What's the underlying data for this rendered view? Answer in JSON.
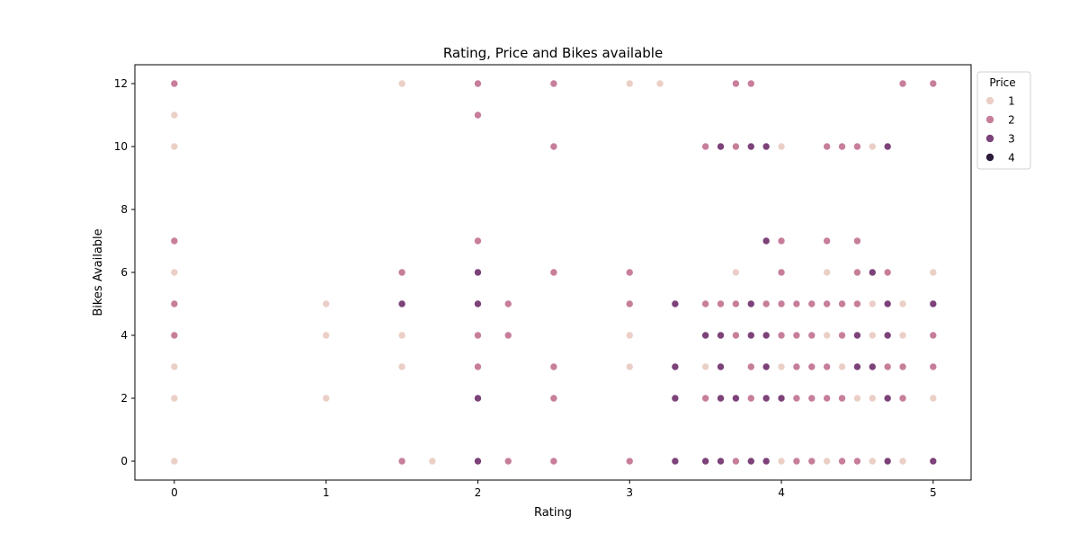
{
  "chart_data": {
    "type": "scatter",
    "title": "Rating, Price and Bikes available",
    "xlabel": "Rating",
    "ylabel": "Bikes Available",
    "xlim": [
      -0.26,
      5.25
    ],
    "ylim": [
      -0.6,
      12.6
    ],
    "xticks": [
      0,
      1,
      2,
      3,
      4,
      5
    ],
    "yticks": [
      0,
      2,
      4,
      6,
      8,
      10,
      12
    ],
    "grid": false,
    "legend": {
      "title": "Price",
      "placement": "outside-top-right",
      "entries": [
        {
          "label": "1",
          "color": "#ebcfc6"
        },
        {
          "label": "2",
          "color": "#c77e9a"
        },
        {
          "label": "3",
          "color": "#7c4279"
        },
        {
          "label": "4",
          "color": "#2d1b3b"
        }
      ]
    },
    "series": [
      {
        "name": "1",
        "color": "#ebcfc6",
        "points": [
          [
            0,
            11
          ],
          [
            0,
            10
          ],
          [
            0,
            6
          ],
          [
            0,
            3
          ],
          [
            0,
            2
          ],
          [
            0,
            0
          ],
          [
            1,
            5
          ],
          [
            1,
            4
          ],
          [
            1,
            2
          ],
          [
            1.5,
            12
          ],
          [
            1.5,
            4
          ],
          [
            1.5,
            3
          ],
          [
            1.7,
            0
          ],
          [
            3,
            12
          ],
          [
            3.2,
            12
          ],
          [
            3,
            4
          ],
          [
            3,
            3
          ],
          [
            3.5,
            3
          ],
          [
            3.7,
            6
          ],
          [
            4,
            10
          ],
          [
            4,
            3
          ],
          [
            4,
            2
          ],
          [
            4,
            0
          ],
          [
            4.1,
            0
          ],
          [
            4.2,
            0
          ],
          [
            4.3,
            6
          ],
          [
            4.3,
            4
          ],
          [
            4.3,
            0
          ],
          [
            4.4,
            3
          ],
          [
            4.5,
            2
          ],
          [
            4.6,
            10
          ],
          [
            4.6,
            5
          ],
          [
            4.6,
            4
          ],
          [
            4.6,
            2
          ],
          [
            4.6,
            0
          ],
          [
            4.7,
            3
          ],
          [
            4.8,
            5
          ],
          [
            4.8,
            4
          ],
          [
            4.8,
            0
          ],
          [
            5,
            6
          ],
          [
            5,
            2
          ]
        ]
      },
      {
        "name": "2",
        "color": "#c77e9a",
        "points": [
          [
            0,
            12
          ],
          [
            0,
            7
          ],
          [
            0,
            5
          ],
          [
            0,
            4
          ],
          [
            1.5,
            6
          ],
          [
            1.5,
            0
          ],
          [
            2,
            12
          ],
          [
            2,
            11
          ],
          [
            2,
            7
          ],
          [
            2,
            4
          ],
          [
            2,
            3
          ],
          [
            2.2,
            5
          ],
          [
            2.2,
            4
          ],
          [
            2.2,
            0
          ],
          [
            2.5,
            12
          ],
          [
            2.5,
            10
          ],
          [
            2.5,
            6
          ],
          [
            2.5,
            3
          ],
          [
            2.5,
            2
          ],
          [
            2.5,
            0
          ],
          [
            3,
            6
          ],
          [
            3,
            5
          ],
          [
            3,
            0
          ],
          [
            3.5,
            10
          ],
          [
            3.5,
            5
          ],
          [
            3.5,
            2
          ],
          [
            3.6,
            5
          ],
          [
            3.7,
            12
          ],
          [
            3.7,
            10
          ],
          [
            3.7,
            5
          ],
          [
            3.7,
            4
          ],
          [
            3.7,
            0
          ],
          [
            3.8,
            12
          ],
          [
            3.8,
            3
          ],
          [
            3.8,
            2
          ],
          [
            3.9,
            5
          ],
          [
            4,
            7
          ],
          [
            4,
            6
          ],
          [
            4,
            5
          ],
          [
            4,
            4
          ],
          [
            4.1,
            5
          ],
          [
            4.1,
            4
          ],
          [
            4.1,
            3
          ],
          [
            4.1,
            2
          ],
          [
            4.1,
            0
          ],
          [
            4.2,
            5
          ],
          [
            4.2,
            4
          ],
          [
            4.2,
            3
          ],
          [
            4.2,
            2
          ],
          [
            4.2,
            0
          ],
          [
            4.3,
            10
          ],
          [
            4.3,
            7
          ],
          [
            4.3,
            5
          ],
          [
            4.3,
            3
          ],
          [
            4.3,
            2
          ],
          [
            4.4,
            10
          ],
          [
            4.4,
            5
          ],
          [
            4.4,
            4
          ],
          [
            4.4,
            2
          ],
          [
            4.4,
            0
          ],
          [
            4.5,
            10
          ],
          [
            4.5,
            7
          ],
          [
            4.5,
            6
          ],
          [
            4.5,
            5
          ],
          [
            4.5,
            0
          ],
          [
            4.6,
            3
          ],
          [
            4.7,
            6
          ],
          [
            4.7,
            3
          ],
          [
            4.8,
            12
          ],
          [
            4.8,
            3
          ],
          [
            4.8,
            2
          ],
          [
            5,
            12
          ],
          [
            5,
            4
          ],
          [
            5,
            3
          ]
        ]
      },
      {
        "name": "3",
        "color": "#7c4279",
        "points": [
          [
            1.5,
            5
          ],
          [
            2,
            6
          ],
          [
            2,
            5
          ],
          [
            2,
            2
          ],
          [
            2,
            0
          ],
          [
            3.3,
            5
          ],
          [
            3.3,
            3
          ],
          [
            3.3,
            2
          ],
          [
            3.3,
            0
          ],
          [
            3.5,
            4
          ],
          [
            3.5,
            0
          ],
          [
            3.6,
            10
          ],
          [
            3.6,
            4
          ],
          [
            3.6,
            3
          ],
          [
            3.6,
            2
          ],
          [
            3.6,
            0
          ],
          [
            3.7,
            2
          ],
          [
            3.8,
            10
          ],
          [
            3.8,
            5
          ],
          [
            3.8,
            4
          ],
          [
            3.8,
            0
          ],
          [
            3.9,
            10
          ],
          [
            3.9,
            7
          ],
          [
            3.9,
            4
          ],
          [
            3.9,
            3
          ],
          [
            3.9,
            2
          ],
          [
            3.9,
            0
          ],
          [
            4,
            2
          ],
          [
            4.5,
            4
          ],
          [
            4.5,
            3
          ],
          [
            4.6,
            6
          ],
          [
            4.6,
            3
          ],
          [
            4.7,
            10
          ],
          [
            4.7,
            5
          ],
          [
            4.7,
            4
          ],
          [
            4.7,
            2
          ],
          [
            4.7,
            0
          ],
          [
            5,
            5
          ],
          [
            5,
            0
          ]
        ]
      },
      {
        "name": "4",
        "color": "#2d1b3b",
        "points": []
      }
    ]
  }
}
